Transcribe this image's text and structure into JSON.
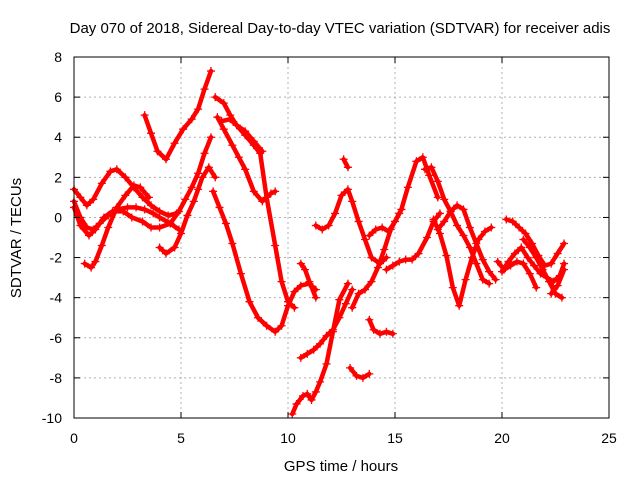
{
  "chart_data": {
    "type": "scatter",
    "title": "Day 070 of 2018, Sidereal Day-to-day VTEC variation (SDTVAR) for receiver adis",
    "xlabel": "GPS time / hours",
    "ylabel": "SDTVAR / TECUs",
    "xlim": [
      0,
      25
    ],
    "ylim": [
      -10,
      8
    ],
    "xticks": [
      0,
      5,
      10,
      15,
      20,
      25
    ],
    "yticks": [
      -10,
      -8,
      -6,
      -4,
      -2,
      0,
      2,
      4,
      6,
      8
    ],
    "grid": true,
    "marker": "plus",
    "color": "#ff0000",
    "series": [
      {
        "name": "s1",
        "x": [
          0,
          0.3,
          0.7,
          1.0,
          1.4,
          1.8,
          2.3,
          2.7,
          3.2,
          3.6,
          4.0,
          4.5,
          4.9,
          5.2,
          5.5,
          5.8,
          6.1,
          6.4
        ],
        "y": [
          0.5,
          -0.4,
          -0.9,
          -0.6,
          0.0,
          0.3,
          0.3,
          0.0,
          -0.2,
          -0.5,
          -0.5,
          -0.3,
          0.3,
          0.9,
          1.5,
          2.2,
          3.2,
          4.0
        ]
      },
      {
        "name": "s2",
        "x": [
          0,
          0.3,
          0.6,
          0.9,
          1.3,
          1.7,
          2.0,
          2.4,
          2.8,
          3.2,
          3.6,
          4.0,
          4.4,
          4.8
        ],
        "y": [
          1.4,
          1.0,
          0.6,
          0.9,
          1.7,
          2.3,
          2.4,
          2.0,
          1.5,
          1.0,
          0.6,
          0.3,
          0.1,
          0.2
        ]
      },
      {
        "name": "s3",
        "x": [
          0,
          0.3,
          0.6,
          0.9,
          1.2,
          1.6,
          2.0,
          2.5,
          2.9,
          3.3,
          3.7,
          4.0,
          4.5,
          4.9
        ],
        "y": [
          0.8,
          0.0,
          -0.5,
          -0.6,
          -0.3,
          0.1,
          0.4,
          0.5,
          0.5,
          0.4,
          0.2,
          0.0,
          -0.3,
          -0.6
        ]
      },
      {
        "name": "s4",
        "x": [
          0.5,
          0.8,
          1.0,
          1.3,
          1.6,
          2.0,
          2.4,
          2.8,
          3.1,
          3.5
        ],
        "y": [
          -2.3,
          -2.5,
          -2.2,
          -1.4,
          -0.5,
          0.5,
          1.1,
          1.6,
          1.5,
          1.0
        ]
      },
      {
        "name": "s5",
        "x": [
          3.3,
          3.6,
          3.9,
          4.3,
          4.7,
          5.1,
          5.5,
          5.8,
          6.1,
          6.4
        ],
        "y": [
          5.1,
          4.2,
          3.3,
          2.9,
          3.7,
          4.4,
          4.9,
          5.4,
          6.4,
          7.3
        ]
      },
      {
        "name": "s6",
        "x": [
          4.0,
          4.3,
          4.7,
          5.0,
          5.3,
          5.6,
          5.8,
          6.0,
          6.3,
          6.6
        ],
        "y": [
          -1.5,
          -1.8,
          -1.5,
          -0.8,
          0.1,
          0.8,
          1.4,
          2.0,
          2.5,
          2.0
        ]
      },
      {
        "name": "s7",
        "x": [
          6.5,
          6.8,
          7.1,
          7.4,
          7.8,
          8.2,
          8.6,
          9.0,
          9.4,
          9.7,
          10.0,
          10.3,
          10.6,
          11.0,
          11.3
        ],
        "y": [
          1.3,
          0.5,
          -0.3,
          -1.3,
          -2.8,
          -4.2,
          -5.0,
          -5.4,
          -5.7,
          -5.4,
          -4.4,
          -3.7,
          -3.4,
          -3.3,
          -3.6
        ]
      },
      {
        "name": "s8",
        "x": [
          6.6,
          7.0,
          7.3,
          7.6,
          8.0,
          8.4,
          8.7,
          9.0,
          9.4,
          9.7,
          10.0,
          10.3
        ],
        "y": [
          6.0,
          5.7,
          5.1,
          4.6,
          4.1,
          3.6,
          3.2,
          1.0,
          -1.4,
          -3.2,
          -4.2,
          -4.5
        ]
      },
      {
        "name": "s9",
        "x": [
          6.7,
          7.0,
          7.4,
          7.7,
          8.0,
          8.4,
          8.8,
          9.2,
          9.4
        ],
        "y": [
          5.0,
          4.4,
          3.6,
          3.0,
          2.4,
          1.3,
          0.8,
          1.2,
          1.3
        ]
      },
      {
        "name": "s10",
        "x": [
          6.9,
          7.3,
          7.6,
          8.0,
          8.4,
          8.8
        ],
        "y": [
          4.8,
          4.9,
          4.6,
          4.3,
          3.8,
          3.3
        ]
      },
      {
        "name": "s11",
        "x": [
          10.2,
          10.4,
          10.7,
          10.9,
          11.1,
          11.3,
          11.5,
          11.8,
          12.1,
          12.4,
          12.8
        ],
        "y": [
          -9.8,
          -9.3,
          -8.9,
          -8.8,
          -9.1,
          -8.7,
          -8.2,
          -7.3,
          -5.7,
          -4.1,
          -3.3
        ]
      },
      {
        "name": "s12",
        "x": [
          10.6,
          10.9,
          11.2,
          11.5,
          11.8,
          12.1,
          12.4,
          12.7,
          13.0
        ],
        "y": [
          -7.0,
          -6.8,
          -6.6,
          -6.3,
          -5.9,
          -5.6,
          -5.0,
          -4.3,
          -3.6
        ]
      },
      {
        "name": "s13",
        "x": [
          10.6,
          10.8,
          11.0,
          11.3
        ],
        "y": [
          -2.3,
          -2.6,
          -3.2,
          -4.0
        ]
      },
      {
        "name": "s14",
        "x": [
          11.3,
          11.6,
          11.9,
          12.2,
          12.5,
          12.8,
          13.0,
          13.3,
          13.6,
          13.9,
          14.3,
          14.6
        ],
        "y": [
          -0.4,
          -0.6,
          -0.4,
          0.2,
          1.1,
          1.4,
          0.8,
          -0.2,
          -1.1,
          -2.0,
          -2.3,
          -2.0
        ]
      },
      {
        "name": "s15",
        "x": [
          12.6,
          12.8
        ],
        "y": [
          2.9,
          2.5
        ]
      },
      {
        "name": "s16",
        "x": [
          12.9,
          13.2,
          13.5,
          13.8
        ],
        "y": [
          -7.5,
          -7.9,
          -8.0,
          -7.8
        ]
      },
      {
        "name": "s17",
        "x": [
          13.0,
          13.3,
          13.6,
          13.9,
          14.2,
          14.5,
          14.8,
          15.2
        ],
        "y": [
          -4.5,
          -3.8,
          -3.6,
          -3.2,
          -2.5,
          -1.6,
          -0.6,
          0.2
        ]
      },
      {
        "name": "s18",
        "x": [
          13.8,
          14.1,
          14.4,
          14.7,
          15.0,
          15.3,
          15.6,
          16.0,
          16.3,
          16.6,
          17.0
        ],
        "y": [
          -0.9,
          -0.6,
          -0.5,
          -0.7,
          -0.2,
          0.4,
          1.5,
          2.8,
          3.0,
          2.1,
          1.0
        ]
      },
      {
        "name": "s19",
        "x": [
          13.8,
          14.0,
          14.3,
          14.6,
          14.9
        ],
        "y": [
          -5.1,
          -5.6,
          -5.8,
          -5.7,
          -5.8
        ]
      },
      {
        "name": "s20",
        "x": [
          14.6,
          14.9,
          15.2,
          15.5,
          15.8,
          16.1,
          16.5,
          16.8,
          17.1
        ],
        "y": [
          -2.6,
          -2.4,
          -2.2,
          -2.1,
          -2.1,
          -1.8,
          -1.0,
          -0.2,
          0.2
        ]
      },
      {
        "name": "s21",
        "x": [
          16.4,
          16.7,
          17.0,
          17.3,
          17.6,
          17.9,
          18.2,
          18.5,
          18.8,
          19.1,
          19.4
        ],
        "y": [
          2.4,
          2.5,
          1.8,
          0.9,
          0.3,
          -0.4,
          -0.9,
          -1.5,
          -2.3,
          -3.1,
          -3.3
        ]
      },
      {
        "name": "s22",
        "x": [
          16.8,
          17.1,
          17.4,
          17.7,
          18.0,
          18.3,
          18.6,
          18.9,
          19.2,
          19.5
        ],
        "y": [
          -0.1,
          -0.8,
          -1.9,
          -3.5,
          -4.4,
          -3.1,
          -2.0,
          -1.1,
          -0.7,
          -0.5
        ]
      },
      {
        "name": "s23",
        "x": [
          17.0,
          17.3,
          17.6,
          17.9,
          18.2,
          18.5,
          18.8,
          19.1,
          19.4,
          19.7
        ],
        "y": [
          -0.6,
          -0.2,
          0.3,
          0.6,
          0.4,
          -0.5,
          -1.3,
          -2.1,
          -2.7,
          -3.1
        ]
      },
      {
        "name": "s24",
        "x": [
          20.0,
          20.3,
          20.6,
          20.9,
          21.2,
          21.5,
          21.8,
          22.1,
          22.4,
          22.7,
          22.9
        ],
        "y": [
          -2.7,
          -2.2,
          -1.8,
          -1.5,
          -2.0,
          -2.4,
          -2.8,
          -3.0,
          -3.2,
          -2.9,
          -2.3
        ]
      },
      {
        "name": "s25",
        "x": [
          20.2,
          20.5,
          20.8,
          21.1,
          21.4,
          21.7,
          22.0,
          22.3,
          22.6,
          22.9
        ],
        "y": [
          -0.1,
          -0.2,
          -0.5,
          -0.8,
          -1.3,
          -1.9,
          -2.4,
          -2.3,
          -1.8,
          -1.3
        ]
      },
      {
        "name": "s26",
        "x": [
          19.8,
          20.1,
          20.4,
          20.7,
          21.0,
          21.3,
          21.6
        ],
        "y": [
          -2.2,
          -2.6,
          -2.4,
          -2.2,
          -2.3,
          -2.8,
          -3.5
        ]
      },
      {
        "name": "s27",
        "x": [
          21.0,
          21.3,
          21.6,
          21.9,
          22.2,
          22.5,
          22.8
        ],
        "y": [
          -1.1,
          -1.5,
          -2.0,
          -2.6,
          -3.2,
          -3.8,
          -4.0
        ]
      },
      {
        "name": "s28",
        "x": [
          22.3,
          22.6,
          22.9
        ],
        "y": [
          -3.8,
          -3.4,
          -2.6
        ]
      }
    ]
  }
}
